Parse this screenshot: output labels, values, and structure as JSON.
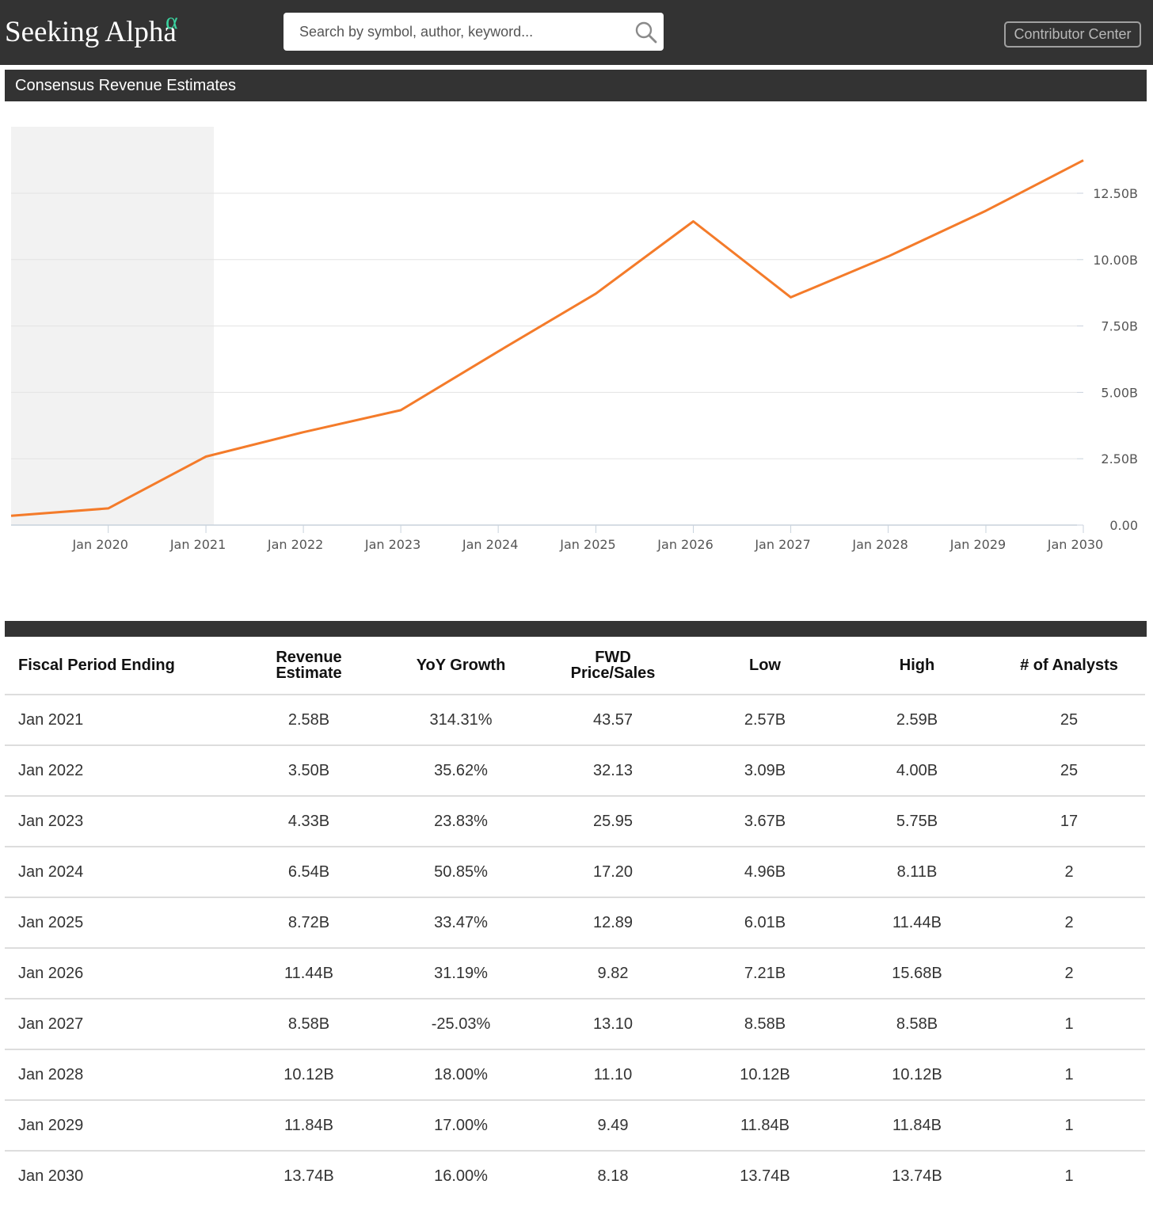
{
  "header": {
    "logo_text": "Seeking Alpha",
    "logo_mark": "α",
    "search_placeholder": "Search by symbol, author, keyword...",
    "search_icon": "magnifier-icon",
    "contributor_center_label": "Contributor Center"
  },
  "section": {
    "title": "Consensus Revenue Estimates"
  },
  "colors": {
    "topbar": "#333333",
    "line": "#f47b2a",
    "alpha_mark": "#3ad29f",
    "historical_shade": "#f2f2f2"
  },
  "chart_data": {
    "type": "line",
    "title": "",
    "xlabel": "",
    "ylabel": "",
    "x_ticks": [
      "Jan 2020",
      "Jan 2021",
      "Jan 2022",
      "Jan 2023",
      "Jan 2024",
      "Jan 2025",
      "Jan 2026",
      "Jan 2027",
      "Jan 2028",
      "Jan 2029",
      "Jan 2030"
    ],
    "y_ticks": [
      "0.00",
      "2.50B",
      "5.00B",
      "7.50B",
      "10.00B",
      "12.50B"
    ],
    "y_tick_values": [
      0,
      2.5,
      5,
      7.5,
      10,
      12.5
    ],
    "ylim": [
      0,
      15
    ],
    "xlim": [
      "2019-02-01",
      "2030-01-31"
    ],
    "historical_shade_range": [
      "2019-02-01",
      "2021-01-31"
    ],
    "y_axis_position": "right",
    "grid": true,
    "series": [
      {
        "x": [
          "2019-02-01",
          "2020-01-31",
          "2021-01-31",
          "2022-01-31",
          "2023-01-31",
          "2024-01-31",
          "2025-01-31",
          "2026-01-31",
          "2027-01-31",
          "2028-01-31",
          "2029-01-31",
          "2030-01-31"
        ],
        "values": [
          0.35,
          0.63,
          2.58,
          3.5,
          4.33,
          6.54,
          8.72,
          11.44,
          8.58,
          10.12,
          11.84,
          13.74
        ],
        "unit": "B"
      }
    ]
  },
  "table": {
    "headers": [
      [
        "Fiscal Period Ending"
      ],
      [
        "Revenue",
        "Estimate"
      ],
      [
        "YoY Growth"
      ],
      [
        "FWD",
        "Price/Sales"
      ],
      [
        "Low"
      ],
      [
        "High"
      ],
      [
        "# of Analysts"
      ]
    ],
    "rows": [
      [
        "Jan 2021",
        "2.58B",
        "314.31%",
        "43.57",
        "2.57B",
        "2.59B",
        "25"
      ],
      [
        "Jan 2022",
        "3.50B",
        "35.62%",
        "32.13",
        "3.09B",
        "4.00B",
        "25"
      ],
      [
        "Jan 2023",
        "4.33B",
        "23.83%",
        "25.95",
        "3.67B",
        "5.75B",
        "17"
      ],
      [
        "Jan 2024",
        "6.54B",
        "50.85%",
        "17.20",
        "4.96B",
        "8.11B",
        "2"
      ],
      [
        "Jan 2025",
        "8.72B",
        "33.47%",
        "12.89",
        "6.01B",
        "11.44B",
        "2"
      ],
      [
        "Jan 2026",
        "11.44B",
        "31.19%",
        "9.82",
        "7.21B",
        "15.68B",
        "2"
      ],
      [
        "Jan 2027",
        "8.58B",
        "-25.03%",
        "13.10",
        "8.58B",
        "8.58B",
        "1"
      ],
      [
        "Jan 2028",
        "10.12B",
        "18.00%",
        "11.10",
        "10.12B",
        "10.12B",
        "1"
      ],
      [
        "Jan 2029",
        "11.84B",
        "17.00%",
        "9.49",
        "11.84B",
        "11.84B",
        "1"
      ],
      [
        "Jan 2030",
        "13.74B",
        "16.00%",
        "8.18",
        "13.74B",
        "13.74B",
        "1"
      ]
    ]
  }
}
